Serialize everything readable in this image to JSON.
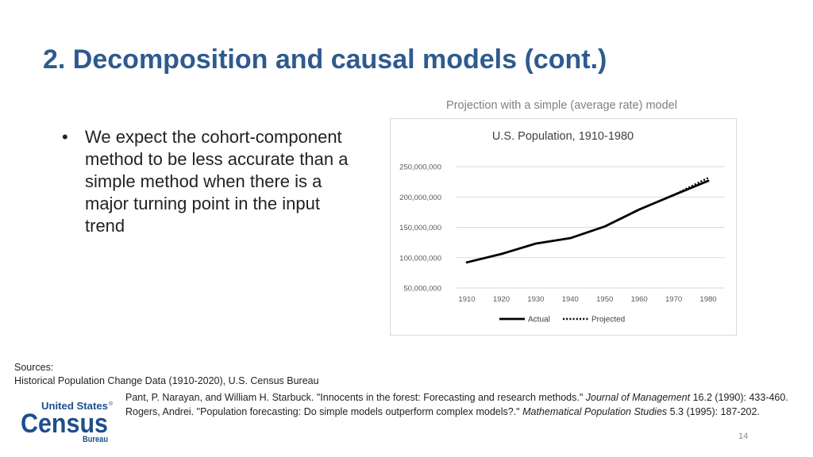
{
  "slide": {
    "title": "2. Decomposition and causal models (cont.)",
    "bullet_symbol": "•",
    "bullet": "We expect the cohort-component method to be less accurate than a simple method when there is a major turning point in the input trend",
    "chart_caption": "Projection with a simple (average rate) model",
    "page_number": "14"
  },
  "sources": {
    "heading": "Sources:",
    "line1": "Historical Population Change Data (1910-2020), U.S. Census Bureau",
    "ref1_text": "Pant, P. Narayan, and William H. Starbuck. \"Innocents in the forest: Forecasting and research methods.\" ",
    "ref1_journal": "Journal of Management",
    "ref1_tail": " 16.2 (1990): 433-460.",
    "ref2_text": "Rogers, Andrei. \"Population forecasting: Do simple models outperform complex models?.\" ",
    "ref2_journal": "Mathematical Population Studies",
    "ref2_tail": " 5.3 (1995): 187-202."
  },
  "logo": {
    "line1": "United States",
    "registered": "®",
    "line2": "Census",
    "line3": "Bureau",
    "color": "#1f4e8c"
  },
  "chart_data": {
    "type": "line",
    "title": "U.S. Population, 1910-1980",
    "categories": [
      "1910",
      "1920",
      "1930",
      "1940",
      "1950",
      "1960",
      "1970",
      "1980"
    ],
    "series": [
      {
        "name": "Actual",
        "style": "solid",
        "values": [
          92228496,
          106021537,
          123202624,
          132164569,
          151325798,
          179323175,
          203211926,
          226545805
        ]
      },
      {
        "name": "Projected",
        "style": "dotted",
        "values": [
          null,
          null,
          null,
          null,
          null,
          null,
          203211926,
          231500000
        ]
      }
    ],
    "ylim": [
      50000000,
      250000000
    ],
    "yticks": [
      50000000,
      100000000,
      150000000,
      200000000,
      250000000
    ],
    "ytick_labels": [
      "50,000,000",
      "100,000,000",
      "150,000,000",
      "200,000,000",
      "250,000,000"
    ],
    "grid": true,
    "legend": "bottom",
    "xlabel": "",
    "ylabel": ""
  }
}
